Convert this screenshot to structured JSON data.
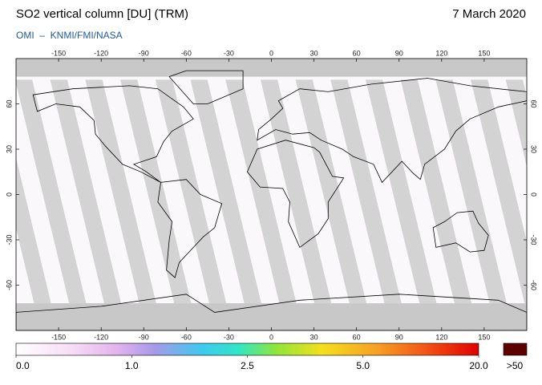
{
  "header": {
    "title": "SO2 vertical column [DU] (TRM)",
    "date": "7 March 2020",
    "credit": "OMI  –  KNMI/FMI/NASA"
  },
  "map": {
    "lon_range": [
      -180,
      180
    ],
    "lat_range": [
      -90,
      90
    ],
    "lon_ticks": [
      -150,
      -120,
      -90,
      -60,
      -30,
      0,
      30,
      60,
      90,
      120,
      150
    ],
    "lat_ticks": [
      -60,
      -30,
      0,
      30,
      60
    ]
  },
  "colorbar": {
    "ticks": [
      {
        "value": 0,
        "label": "0.0"
      },
      {
        "value": 1,
        "label": "1.0"
      },
      2.5,
      {
        "value": 5,
        "label": "5.0"
      },
      {
        "value": 20,
        "label": "20.0"
      }
    ],
    "overflow_label": ">50"
  }
}
